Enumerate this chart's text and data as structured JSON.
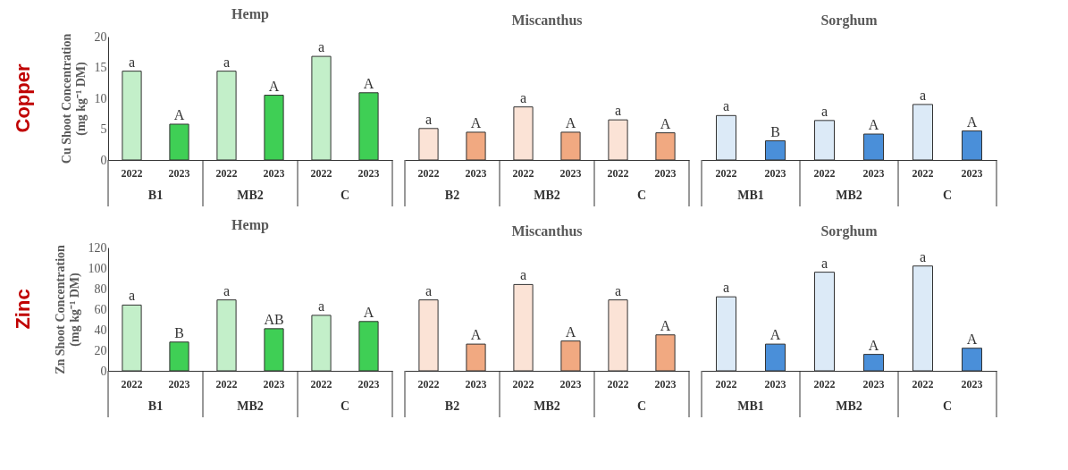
{
  "chart_data": [
    {
      "type": "bar",
      "title": "Hemp",
      "ylabel": "Cu Shoot Concentration\n(mg kg⁻¹ DM)",
      "categories": [
        "2022",
        "2023",
        "2022",
        "2023",
        "2022",
        "2023"
      ],
      "values": [
        14.4,
        5.8,
        14.4,
        10.5,
        16.8,
        10.9
      ],
      "colors": [
        "#c3efc9",
        "#3fcf55",
        "#c3efc9",
        "#3fcf55",
        "#c3efc9",
        "#3fcf55"
      ],
      "value_labels": [
        "a",
        "A",
        "a",
        "A",
        "a",
        "A"
      ],
      "ylim": [
        0,
        20
      ],
      "yticks": [
        0,
        5,
        10,
        15,
        20
      ],
      "annotations": [
        "Copper",
        "B1",
        "MB2",
        "C"
      ]
    },
    {
      "type": "bar",
      "title": "Miscanthus",
      "categories": [
        "2022",
        "2023",
        "2022",
        "2023",
        "2022",
        "2023"
      ],
      "values": [
        5.1,
        4.5,
        8.6,
        4.5,
        6.5,
        4.4
      ],
      "colors": [
        "#fbe3d6",
        "#f1a981",
        "#fbe3d6",
        "#f1a981",
        "#fbe3d6",
        "#f1a981"
      ],
      "value_labels": [
        "a",
        "A",
        "a",
        "A",
        "a",
        "A"
      ],
      "ylim": [
        0,
        20
      ],
      "tick_labels": "x",
      "annotations": [
        "B2",
        "MB2",
        "C"
      ]
    },
    {
      "type": "bar",
      "title": "Sorghum",
      "categories": [
        "2022",
        "2023",
        "2022",
        "2023",
        "2022",
        "2023"
      ],
      "values": [
        7.2,
        3.1,
        6.4,
        4.2,
        9.0,
        4.7
      ],
      "colors": [
        "#dceaf7",
        "#4a8fd9",
        "#dceaf7",
        "#4a8fd9",
        "#dceaf7",
        "#4a8fd9"
      ],
      "value_labels": [
        "a",
        "B",
        "a",
        "A",
        "a",
        "A"
      ],
      "ylim": [
        0,
        20
      ],
      "tick_labels": "x",
      "annotations": [
        "MB1",
        "MB2",
        "C"
      ]
    },
    {
      "type": "bar",
      "title": "Hemp",
      "ylabel": "Zn Shoot Concentration\n(mg kg⁻¹ DM)",
      "categories": [
        "2022",
        "2023",
        "2022",
        "2023",
        "2022",
        "2023"
      ],
      "values": [
        64,
        28,
        69,
        41,
        54,
        48
      ],
      "colors": [
        "#c3efc9",
        "#3fcf55",
        "#c3efc9",
        "#3fcf55",
        "#c3efc9",
        "#3fcf55"
      ],
      "value_labels": [
        "a",
        "B",
        "a",
        "AB",
        "a",
        "A"
      ],
      "ylim": [
        0,
        120
      ],
      "yticks": [
        0,
        20,
        40,
        60,
        80,
        100,
        120
      ],
      "annotations": [
        "Zinc",
        "B1",
        "MB2",
        "C"
      ]
    },
    {
      "type": "bar",
      "title": "Miscanthus",
      "categories": [
        "2022",
        "2023",
        "2022",
        "2023",
        "2022",
        "2023"
      ],
      "values": [
        69,
        26,
        84,
        29,
        69,
        35
      ],
      "colors": [
        "#fbe3d6",
        "#f1a981",
        "#fbe3d6",
        "#f1a981",
        "#fbe3d6",
        "#f1a981"
      ],
      "value_labels": [
        "a",
        "A",
        "a",
        "A",
        "a",
        "A"
      ],
      "ylim": [
        0,
        120
      ],
      "tick_labels": "x",
      "annotations": [
        "B2",
        "MB2",
        "C"
      ]
    },
    {
      "type": "bar",
      "title": "Sorghum",
      "categories": [
        "2022",
        "2023",
        "2022",
        "2023",
        "2022",
        "2023"
      ],
      "values": [
        72,
        26,
        96,
        16,
        102,
        22
      ],
      "colors": [
        "#dceaf7",
        "#4a8fd9",
        "#dceaf7",
        "#4a8fd9",
        "#dceaf7",
        "#4a8fd9"
      ],
      "value_labels": [
        "a",
        "A",
        "a",
        "A",
        "a",
        "A"
      ],
      "ylim": [
        0,
        120
      ],
      "tick_labels": "x",
      "annotations": [
        "MB1",
        "MB2",
        "C"
      ]
    }
  ]
}
